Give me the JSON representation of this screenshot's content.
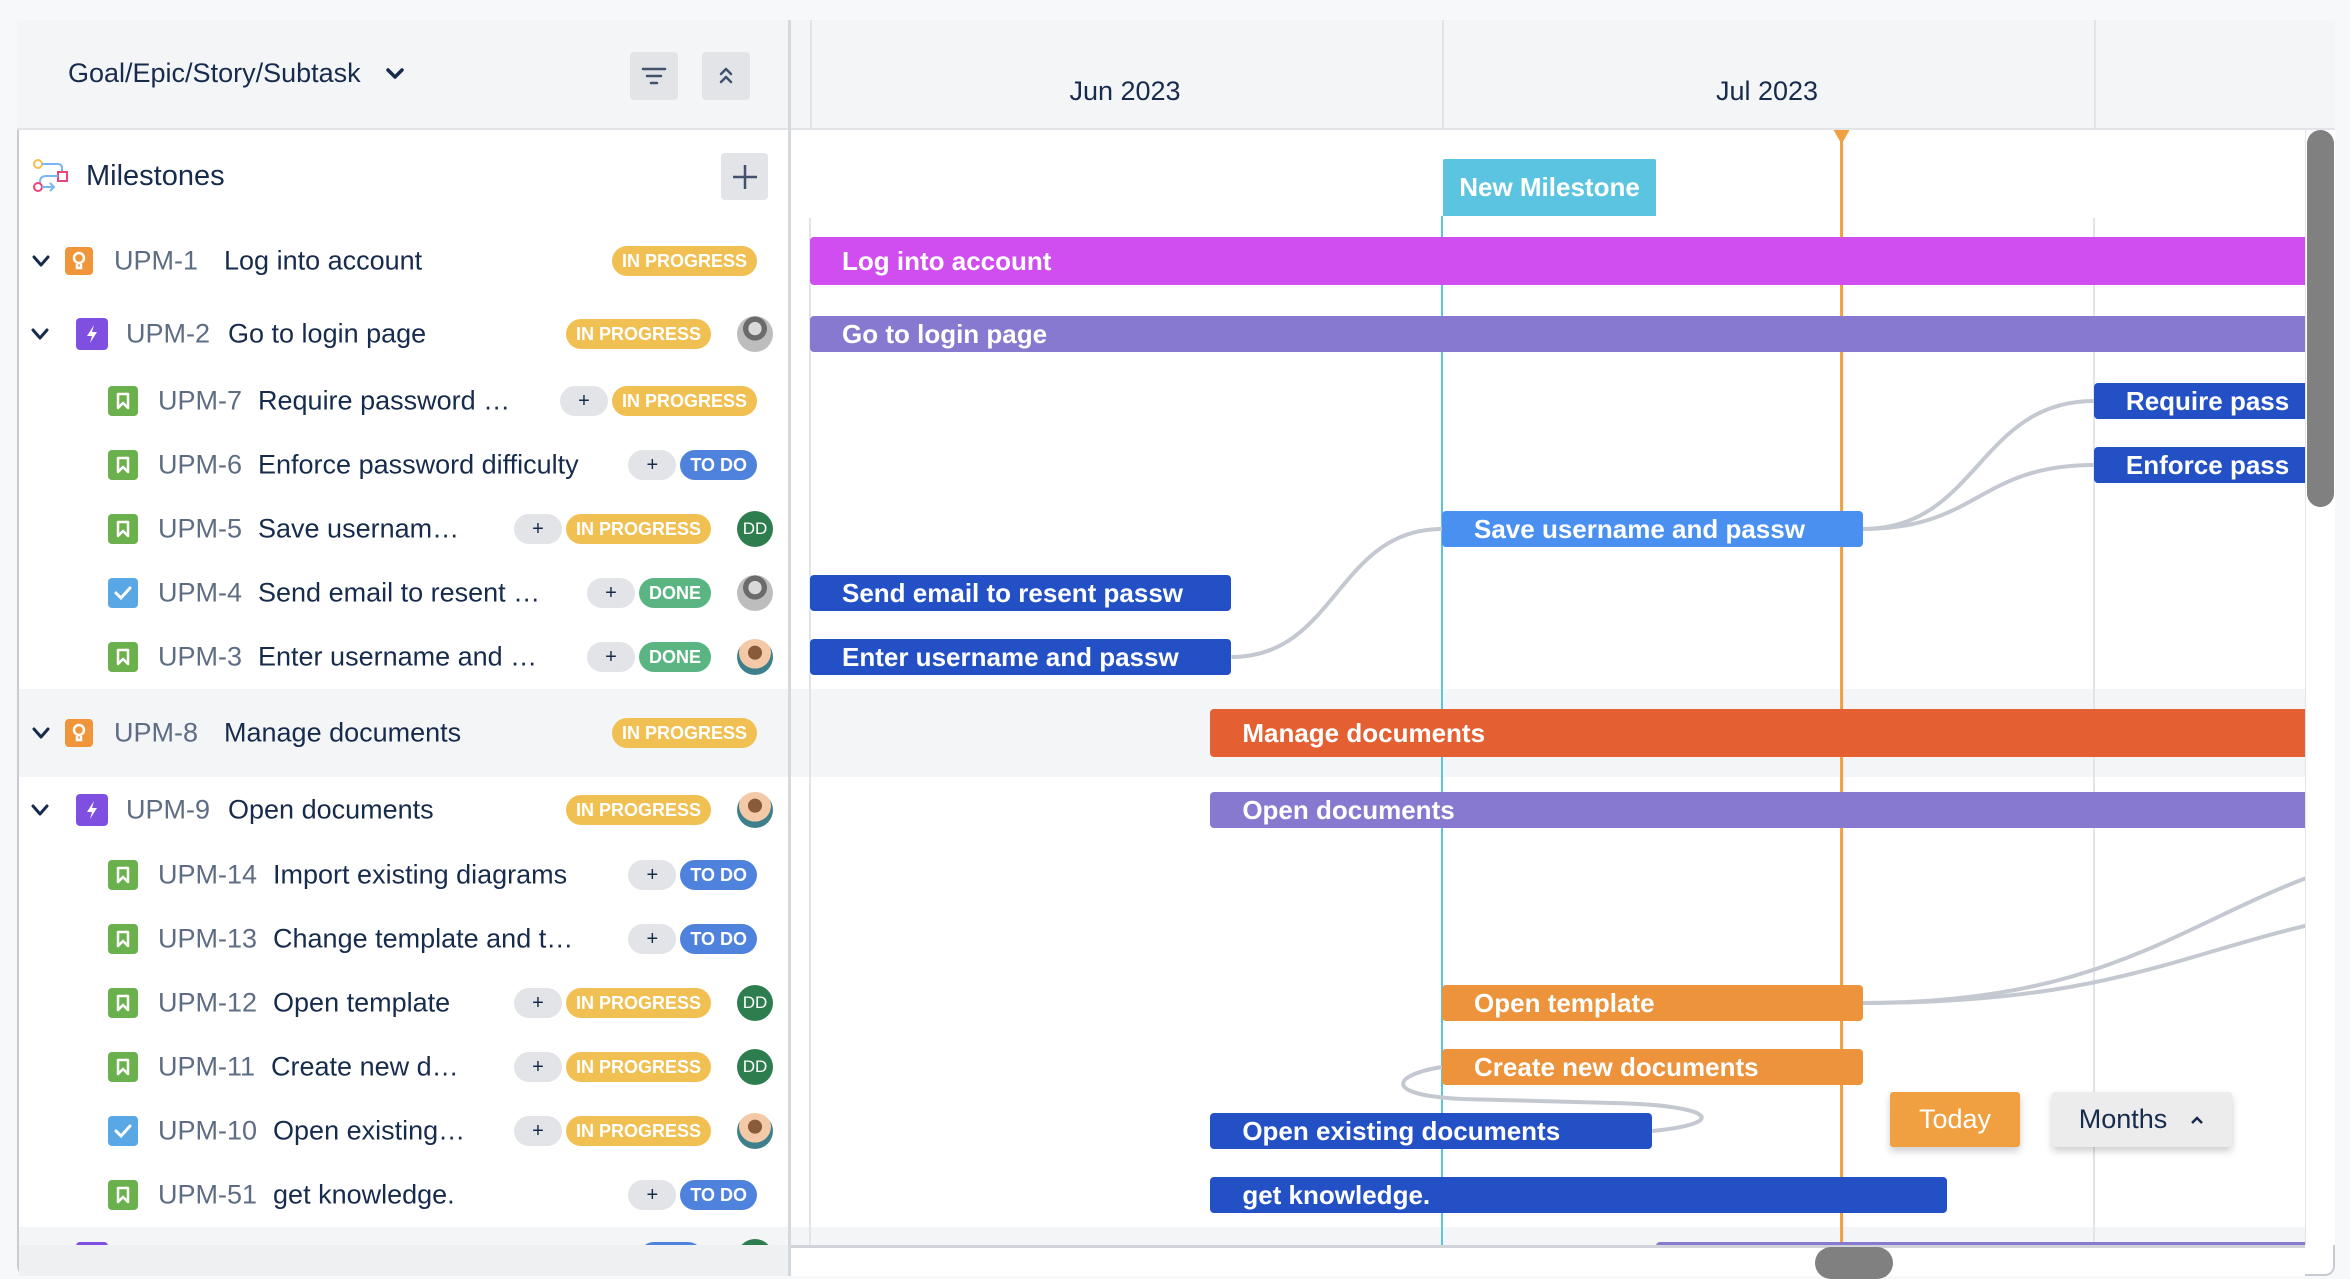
{
  "hierarchy_selector": {
    "label": "Goal/Epic/Story/Subtask",
    "icon": "chevron-down-icon"
  },
  "toolbar": {
    "filter_icon": "filter-icon",
    "collapse_icon": "collapse-all-icon"
  },
  "milestones": {
    "label": "Milestones",
    "icon": "milestones-icon",
    "add_icon": "plus-icon"
  },
  "timeline": {
    "months": [
      "Jun 2023",
      "Jul 2023"
    ],
    "milestone": {
      "label": "New Milestone",
      "date": "2023-07-01"
    },
    "today": "2023-07-20",
    "today_button": "Today",
    "zoom_select": {
      "label": "Months",
      "icon": "chevron-up-icon"
    }
  },
  "colors": {
    "in_progress": "#f0c052",
    "to_do": "#4f82dc",
    "done": "#5ab582",
    "goal_icon": "#f0953a",
    "epic_icon": "#7e4fe0",
    "story_icon": "#6ab04c",
    "task_icon": "#5aa7e6",
    "milestone": "#5bc4e0",
    "today_line": "#f0a040",
    "dependency": "#c4c8d0"
  },
  "rows": [
    {
      "id": "UPM-1",
      "title": "Log into account",
      "type": "goal",
      "status": "IN PROGRESS",
      "expanded": true,
      "add": false,
      "avatar": null
    },
    {
      "id": "UPM-2",
      "title": "Go to login page",
      "type": "epic",
      "status": "IN PROGRESS",
      "expanded": true,
      "add": false,
      "avatar": "photo-gray"
    },
    {
      "id": "UPM-7",
      "title": "Require password …",
      "type": "story",
      "status": "IN PROGRESS",
      "add": true,
      "avatar": null
    },
    {
      "id": "UPM-6",
      "title": "Enforce password difficulty",
      "type": "story",
      "status": "TO DO",
      "add": true,
      "avatar": null
    },
    {
      "id": "UPM-5",
      "title": "Save usernam…",
      "type": "story",
      "status": "IN PROGRESS",
      "add": true,
      "avatar": "DD"
    },
    {
      "id": "UPM-4",
      "title": "Send email to resent …",
      "type": "task",
      "status": "DONE",
      "add": true,
      "avatar": "photo-gray"
    },
    {
      "id": "UPM-3",
      "title": "Enter username and …",
      "type": "story",
      "status": "DONE",
      "add": true,
      "avatar": "photo-color"
    },
    {
      "id": "UPM-8",
      "title": "Manage documents",
      "type": "goal",
      "status": "IN PROGRESS",
      "expanded": true,
      "add": false,
      "avatar": null
    },
    {
      "id": "UPM-9",
      "title": "Open documents",
      "type": "epic",
      "status": "IN PROGRESS",
      "expanded": true,
      "add": false,
      "avatar": "photo-color"
    },
    {
      "id": "UPM-14",
      "title": "Import existing diagrams",
      "type": "story",
      "status": "TO DO",
      "add": true,
      "avatar": null
    },
    {
      "id": "UPM-13",
      "title": "Change template and t…",
      "type": "story",
      "status": "TO DO",
      "add": true,
      "avatar": null
    },
    {
      "id": "UPM-12",
      "title": "Open template",
      "type": "story",
      "status": "IN PROGRESS",
      "add": true,
      "avatar": "DD"
    },
    {
      "id": "UPM-11",
      "title": "Create new d…",
      "type": "story",
      "status": "IN PROGRESS",
      "add": true,
      "avatar": "DD"
    },
    {
      "id": "UPM-10",
      "title": "Open existing…",
      "type": "task",
      "status": "IN PROGRESS",
      "add": true,
      "avatar": "photo-color"
    },
    {
      "id": "UPM-51",
      "title": "get knowledge.",
      "type": "story",
      "status": "TO DO",
      "add": true,
      "avatar": null
    }
  ],
  "bars": [
    {
      "row": "UPM-1",
      "label": "Log into account",
      "start": "2023-06-01",
      "end": null,
      "color": "#d04ef0"
    },
    {
      "row": "UPM-2",
      "label": "Go to login page",
      "start": "2023-06-01",
      "end": null,
      "color": "#8779d0"
    },
    {
      "row": "UPM-7",
      "label": "Require pass",
      "start": "2023-08-01",
      "end": null,
      "color": "#2350c5"
    },
    {
      "row": "UPM-6",
      "label": "Enforce pass",
      "start": "2023-08-01",
      "end": null,
      "color": "#2350c5"
    },
    {
      "row": "UPM-5",
      "label": "Save username and passw",
      "start": "2023-07-01",
      "end": "2023-07-21",
      "color": "#4a90f0"
    },
    {
      "row": "UPM-4",
      "label": "Send email to resent passw",
      "start": "2023-06-01",
      "end": "2023-06-21",
      "color": "#2350c5"
    },
    {
      "row": "UPM-3",
      "label": "Enter username and passw",
      "start": "2023-06-01",
      "end": "2023-06-21",
      "color": "#2350c5"
    },
    {
      "row": "UPM-8",
      "label": "Manage documents",
      "start": "2023-06-20",
      "end": null,
      "color": "#e46033"
    },
    {
      "row": "UPM-9",
      "label": "Open documents",
      "start": "2023-06-20",
      "end": null,
      "color": "#8779d0"
    },
    {
      "row": "UPM-12",
      "label": "Open template",
      "start": "2023-07-01",
      "end": "2023-07-21",
      "color": "#ec933b"
    },
    {
      "row": "UPM-11",
      "label": "Create new documents",
      "start": "2023-07-01",
      "end": "2023-07-21",
      "color": "#ec933b"
    },
    {
      "row": "UPM-10",
      "label": "Open existing documents",
      "start": "2023-06-20",
      "end": "2023-07-11",
      "color": "#2350c5"
    },
    {
      "row": "UPM-51",
      "label": "get knowledge.",
      "start": "2023-06-20",
      "end": "2023-07-25",
      "color": "#2350c5"
    }
  ],
  "dependencies": [
    {
      "from": "UPM-3",
      "to": "UPM-5"
    },
    {
      "from": "UPM-5",
      "to": "UPM-7"
    },
    {
      "from": "UPM-5",
      "to": "UPM-6"
    },
    {
      "from": "UPM-12",
      "to": "UPM-14"
    },
    {
      "from": "UPM-12",
      "to": "UPM-13"
    },
    {
      "from": "UPM-10",
      "to": "UPM-11"
    }
  ]
}
